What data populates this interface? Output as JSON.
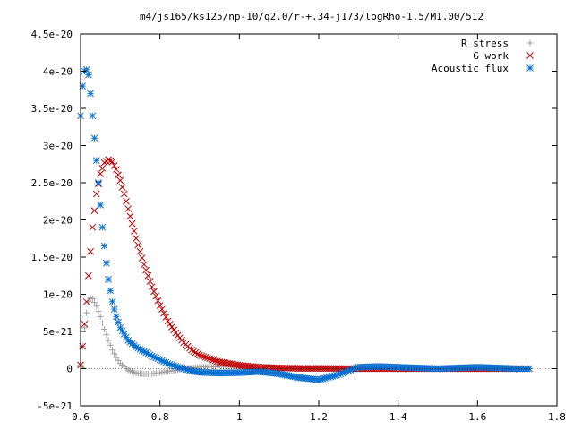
{
  "chart_data": {
    "type": "scatter",
    "title": "m4/js165/ks125/np-10/q2.0/r-+.34-j173/logRho-1.5/M1.00/512",
    "xlabel": "",
    "ylabel": "",
    "xlim": [
      0.6,
      1.8
    ],
    "ylim": [
      -5e-21,
      4.5e-20
    ],
    "x_ticks": [
      {
        "value": 0.6,
        "label": "0.6"
      },
      {
        "value": 0.8,
        "label": "0.8"
      },
      {
        "value": 1.0,
        "label": "1"
      },
      {
        "value": 1.2,
        "label": "1.2"
      },
      {
        "value": 1.4,
        "label": "1.4"
      },
      {
        "value": 1.6,
        "label": "1.6"
      },
      {
        "value": 1.8,
        "label": "1.8"
      }
    ],
    "y_ticks": [
      {
        "value": -5e-21,
        "label": "-5e-21"
      },
      {
        "value": 0,
        "label": "0"
      },
      {
        "value": 5e-21,
        "label": "5e-21"
      },
      {
        "value": 1e-20,
        "label": "1e-20"
      },
      {
        "value": 1.5e-20,
        "label": "1.5e-20"
      },
      {
        "value": 2e-20,
        "label": "2e-20"
      },
      {
        "value": 2.5e-20,
        "label": "2.5e-20"
      },
      {
        "value": 3e-20,
        "label": "3e-20"
      },
      {
        "value": 3.5e-20,
        "label": "3.5e-20"
      },
      {
        "value": 4e-20,
        "label": "4e-20"
      },
      {
        "value": 4.5e-20,
        "label": "4.5e-20"
      }
    ],
    "grid": false,
    "legend_position": "top-right",
    "series": [
      {
        "name": "R stress",
        "marker": "plus",
        "color": "#a0a0a0",
        "x": [
          0.6,
          0.605,
          0.61,
          0.615,
          0.62,
          0.625,
          0.63,
          0.64,
          0.65,
          0.66,
          0.67,
          0.68,
          0.69,
          0.7,
          0.72,
          0.74,
          0.76,
          0.78,
          0.8,
          0.82,
          0.84,
          0.86,
          0.88,
          0.9,
          0.95,
          1.0,
          1.05,
          1.1,
          1.15,
          1.2,
          1.25,
          1.3,
          1.35,
          1.4,
          1.45,
          1.5,
          1.55,
          1.6,
          1.65,
          1.7,
          1.73
        ],
        "y": [
          5e-22,
          3e-21,
          5.5e-21,
          7.5e-21,
          9e-21,
          9.5e-21,
          9.4e-21,
          8.4e-21,
          7e-21,
          5.3e-21,
          3.8e-21,
          2.5e-21,
          1.5e-21,
          7e-22,
          -2e-22,
          -6e-22,
          -7.5e-22,
          -7e-22,
          -5.5e-22,
          -3.5e-22,
          -2e-22,
          0,
          1e-22,
          2e-22,
          2.5e-22,
          2e-22,
          1e-22,
          5e-23,
          0,
          0,
          0,
          0,
          0,
          0,
          0,
          0,
          0,
          0,
          0,
          0,
          0
        ]
      },
      {
        "name": "G work",
        "marker": "cross",
        "color": "#c00000",
        "x": [
          0.6,
          0.605,
          0.61,
          0.615,
          0.62,
          0.63,
          0.64,
          0.65,
          0.66,
          0.67,
          0.68,
          0.69,
          0.7,
          0.71,
          0.72,
          0.74,
          0.76,
          0.78,
          0.8,
          0.82,
          0.84,
          0.86,
          0.88,
          0.9,
          0.95,
          1.0,
          1.05,
          1.1,
          1.15,
          1.2,
          1.3,
          1.4,
          1.5,
          1.6,
          1.7,
          1.73
        ],
        "y": [
          5e-22,
          3e-21,
          6e-21,
          9e-21,
          1.25e-20,
          1.9e-20,
          2.35e-20,
          2.62e-20,
          2.77e-20,
          2.81e-20,
          2.78e-20,
          2.68e-20,
          2.53e-20,
          2.35e-20,
          2.15e-20,
          1.75e-20,
          1.4e-20,
          1.1e-20,
          8.5e-21,
          6.4e-21,
          4.8e-21,
          3.5e-21,
          2.5e-21,
          1.8e-21,
          9e-22,
          4.5e-22,
          2e-22,
          1e-22,
          5e-23,
          5e-23,
          0,
          0,
          0,
          0,
          0,
          0
        ]
      },
      {
        "name": "Acoustic flux",
        "marker": "star",
        "color": "#0a70d0",
        "x": [
          0.6,
          0.605,
          0.61,
          0.615,
          0.62,
          0.625,
          0.63,
          0.635,
          0.64,
          0.645,
          0.65,
          0.655,
          0.66,
          0.665,
          0.67,
          0.68,
          0.69,
          0.7,
          0.72,
          0.74,
          0.76,
          0.78,
          0.8,
          0.82,
          0.84,
          0.86,
          0.88,
          0.9,
          0.95,
          1.0,
          1.05,
          1.1,
          1.15,
          1.2,
          1.25,
          1.3,
          1.35,
          1.4,
          1.45,
          1.5,
          1.55,
          1.6,
          1.65,
          1.7,
          1.73
        ],
        "y": [
          3.4e-20,
          3.8e-20,
          4e-20,
          4.02e-20,
          3.95e-20,
          3.7e-20,
          3.4e-20,
          3.1e-20,
          2.8e-20,
          2.5e-20,
          2.2e-20,
          1.9e-20,
          1.65e-20,
          1.42e-20,
          1.2e-20,
          9e-21,
          7e-21,
          5.5e-21,
          3.8e-21,
          2.9e-21,
          2.3e-21,
          1.7e-21,
          1.2e-21,
          7e-22,
          3e-22,
          0,
          -3e-22,
          -5e-22,
          -6e-22,
          -5.5e-22,
          -4e-22,
          -7e-22,
          -1.2e-21,
          -1.5e-21,
          -8e-22,
          2e-22,
          3e-22,
          2e-22,
          1e-22,
          0,
          1e-22,
          2e-22,
          1e-22,
          0,
          0
        ]
      }
    ]
  }
}
